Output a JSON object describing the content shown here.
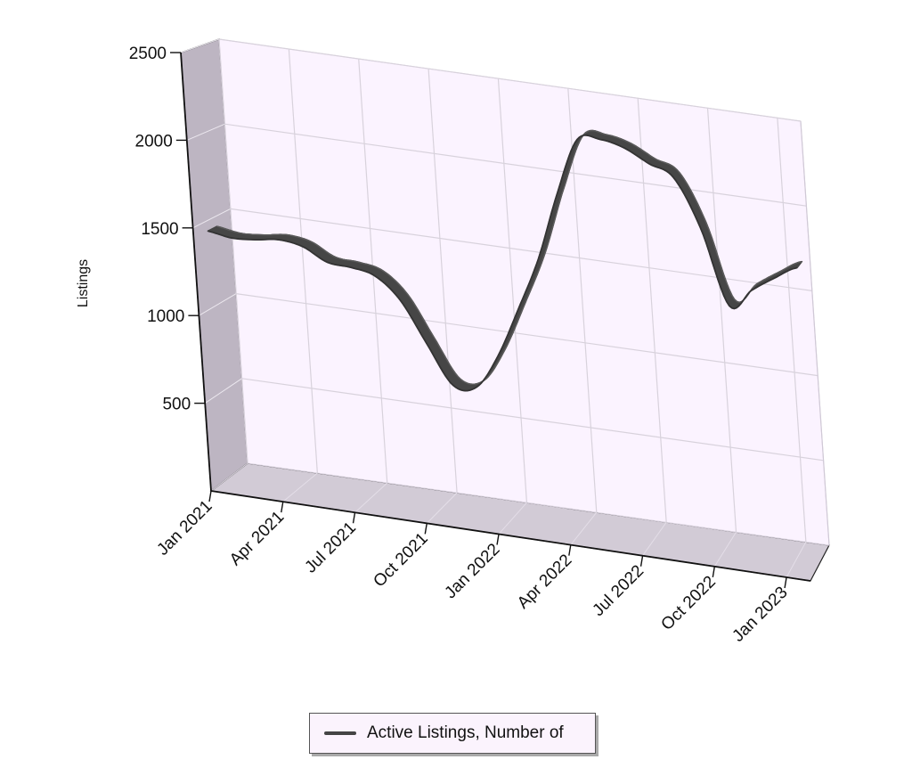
{
  "chart_data": {
    "type": "line",
    "title": "",
    "xlabel": "",
    "ylabel": "Listings",
    "ylim": [
      0,
      2500
    ],
    "yticks": [
      500,
      1000,
      1500,
      2000,
      2500
    ],
    "xticks": [
      "Jan 2021",
      "Apr 2021",
      "Jul 2021",
      "Oct 2021",
      "Jan 2022",
      "Apr 2022",
      "Jul 2022",
      "Oct 2022",
      "Jan 2023"
    ],
    "x": [
      "Jan 2021",
      "Feb 2021",
      "Mar 2021",
      "Apr 2021",
      "May 2021",
      "Jun 2021",
      "Jul 2021",
      "Aug 2021",
      "Sep 2021",
      "Oct 2021",
      "Nov 2021",
      "Dec 2021",
      "Jan 2022",
      "Feb 2022",
      "Mar 2022",
      "Apr 2022",
      "May 2022",
      "Jun 2022",
      "Jul 2022",
      "Aug 2022",
      "Sep 2022",
      "Oct 2022",
      "Nov 2022",
      "Dec 2022",
      "Jan 2023",
      "Feb 2023"
    ],
    "series": [
      {
        "name": "Active Listings, Number of",
        "values": [
          1440,
          1420,
          1430,
          1450,
          1430,
          1360,
          1350,
          1320,
          1200,
          970,
          750,
          760,
          960,
          1250,
          1560,
          1960,
          2290,
          2310,
          2280,
          2210,
          2150,
          1880,
          1450,
          1560,
          1650,
          1730
        ]
      }
    ],
    "grid": true,
    "legend_position": "bottom",
    "style": "3d",
    "colors": {
      "series": "#464646",
      "plot_background": "#fbf3ff",
      "wall": "#bdb5c2",
      "floor": "#d2cbd6"
    }
  }
}
